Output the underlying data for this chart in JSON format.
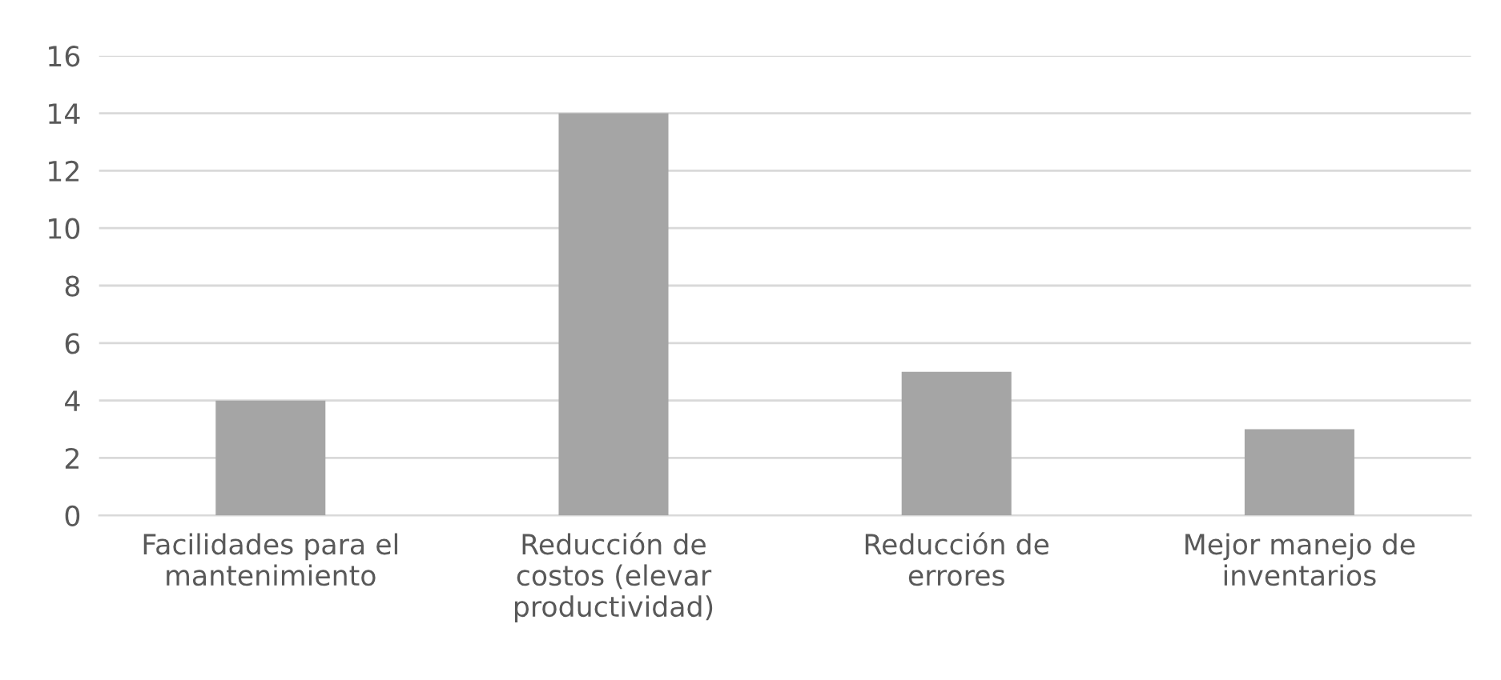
{
  "chart_data": {
    "type": "bar",
    "categories": [
      "Facilidades para el\nmantenimiento",
      "Reducción de\ncostos (elevar\nproductividad)",
      "Reducción de\nerrores",
      "Mejor manejo de\ninventarios"
    ],
    "values": [
      4,
      14,
      5,
      3
    ],
    "color": "#a5a5a5",
    "ylim": [
      0,
      16
    ],
    "yticks": [
      0,
      2,
      4,
      6,
      8,
      10,
      12,
      14,
      16
    ],
    "grid": "y",
    "legend": false
  }
}
